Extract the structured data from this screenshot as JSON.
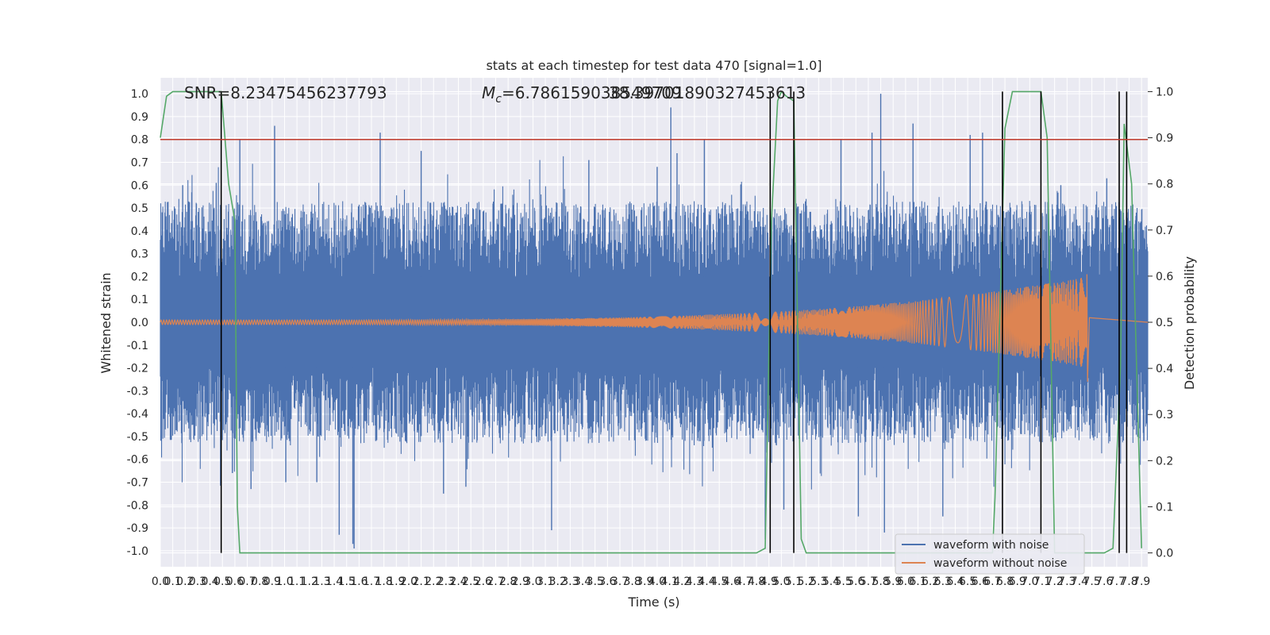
{
  "chart_data": {
    "type": "line",
    "title": "stats at each timestep for test data 470 [signal=1.0]",
    "xlabel": "Time (s)",
    "ylabel": "Whitened strain",
    "y2label": "Detection probability",
    "xlim": [
      0.0,
      7.95
    ],
    "ylim": [
      -1.07,
      1.07
    ],
    "y2lim": [
      -0.03,
      1.03
    ],
    "x_ticks": [
      "0.0",
      "0.1",
      "0.2",
      "0.3",
      "0.4",
      "0.5",
      "0.6",
      "0.7",
      "0.8",
      "0.9",
      "1.0",
      "1.1",
      "1.2",
      "1.3",
      "1.4",
      "1.5",
      "1.6",
      "1.7",
      "1.8",
      "1.9",
      "2.0",
      "2.1",
      "2.2",
      "2.3",
      "2.4",
      "2.5",
      "2.6",
      "2.7",
      "2.8",
      "2.9",
      "3.0",
      "3.1",
      "3.2",
      "3.3",
      "3.4",
      "3.5",
      "3.6",
      "3.7",
      "3.8",
      "3.9",
      "4.0",
      "4.1",
      "4.2",
      "4.3",
      "4.4",
      "4.5",
      "4.6",
      "4.7",
      "4.8",
      "4.9",
      "5.0",
      "5.1",
      "5.2",
      "5.3",
      "5.4",
      "5.5",
      "5.6",
      "5.7",
      "5.8",
      "5.9",
      "6.0",
      "6.1",
      "6.2",
      "6.3",
      "6.4",
      "6.5",
      "6.6",
      "6.7",
      "6.8",
      "6.9",
      "7.0",
      "7.1",
      "7.2",
      "7.3",
      "7.4",
      "7.5",
      "7.6",
      "7.7",
      "7.8",
      "7.9"
    ],
    "y_ticks": [
      "1.0",
      "0.9",
      "0.8",
      "0.7",
      "0.6",
      "0.5",
      "0.4",
      "0.3",
      "0.2",
      "0.1",
      "0.0",
      "-0.1",
      "-0.2",
      "-0.3",
      "-0.4",
      "-0.5",
      "-0.6",
      "-0.7",
      "-0.8",
      "-0.9",
      "-1.0"
    ],
    "y2_ticks": [
      "1.0",
      "0.9",
      "0.8",
      "0.7",
      "0.6",
      "0.5",
      "0.4",
      "0.3",
      "0.2",
      "0.1",
      "0.0"
    ],
    "annotations": {
      "snr": "SNR=8.23475456237793",
      "mc_label": "M",
      "mc_sub": "c",
      "mc_value": "=6.786159038549709",
      "overlap": "38.39701890327453613"
    },
    "threshold": {
      "y": 0.8,
      "color": "#c0392b"
    },
    "vertical_lines_x": [
      0.49,
      4.91,
      5.1,
      6.78,
      7.09,
      7.72,
      7.78
    ],
    "series": [
      {
        "name": "waveform with noise",
        "color": "#4c72b0",
        "axis": "left",
        "envelope_typical": 0.45,
        "spikes": [
          [
            0.18,
            0.6
          ],
          [
            0.45,
            0.61
          ],
          [
            0.58,
            -0.66
          ],
          [
            0.64,
            0.8
          ],
          [
            0.73,
            -0.73
          ],
          [
            0.92,
            0.86
          ],
          [
            1.01,
            -0.7
          ],
          [
            1.26,
            -0.7
          ],
          [
            1.44,
            -0.93
          ],
          [
            1.55,
            -0.97
          ],
          [
            1.56,
            -0.99
          ],
          [
            1.77,
            0.83
          ],
          [
            2.1,
            0.75
          ],
          [
            2.28,
            -0.75
          ],
          [
            2.46,
            -0.72
          ],
          [
            3.15,
            -0.91
          ],
          [
            3.45,
            0.71
          ],
          [
            4.0,
            0.68
          ],
          [
            4.11,
            0.94
          ],
          [
            4.16,
            0.74
          ],
          [
            4.38,
            0.8
          ],
          [
            4.87,
            -0.95
          ],
          [
            5.02,
            -0.82
          ],
          [
            5.48,
            0.8
          ],
          [
            5.62,
            -0.85
          ],
          [
            5.73,
            0.83
          ],
          [
            5.8,
            1.0
          ],
          [
            5.83,
            -0.92
          ],
          [
            6.06,
            0.87
          ],
          [
            6.3,
            -0.85
          ],
          [
            6.52,
            0.82
          ],
          [
            6.62,
            0.83
          ],
          [
            7.25,
            0.6
          ],
          [
            7.62,
            0.63
          ]
        ]
      },
      {
        "name": "waveform without noise",
        "color": "#dd8452",
        "axis": "left",
        "chirp": {
          "start_x": 0.0,
          "merger_x": 7.46,
          "amp_start": 0.01,
          "amp_merger": 0.2
        }
      },
      {
        "name": "detection probability",
        "color": "#55a868",
        "axis": "right",
        "points": [
          [
            0.0,
            0.9
          ],
          [
            0.05,
            0.99
          ],
          [
            0.1,
            1.0
          ],
          [
            0.49,
            1.0
          ],
          [
            0.55,
            0.8
          ],
          [
            0.6,
            0.72
          ],
          [
            0.62,
            0.1
          ],
          [
            0.64,
            0.0
          ],
          [
            1.0,
            0.0
          ],
          [
            2.0,
            0.0
          ],
          [
            3.0,
            0.0
          ],
          [
            4.0,
            0.0
          ],
          [
            4.8,
            0.0
          ],
          [
            4.87,
            0.01
          ],
          [
            4.92,
            0.72
          ],
          [
            4.97,
            0.98
          ],
          [
            5.0,
            1.0
          ],
          [
            5.04,
            0.99
          ],
          [
            5.1,
            0.98
          ],
          [
            5.13,
            0.5
          ],
          [
            5.16,
            0.03
          ],
          [
            5.2,
            0.0
          ],
          [
            5.5,
            0.0
          ],
          [
            6.0,
            0.0
          ],
          [
            6.7,
            0.0
          ],
          [
            6.72,
            0.12
          ],
          [
            6.8,
            0.92
          ],
          [
            6.86,
            1.0
          ],
          [
            7.09,
            1.0
          ],
          [
            7.14,
            0.9
          ],
          [
            7.2,
            0.0
          ],
          [
            7.6,
            0.0
          ],
          [
            7.67,
            0.01
          ],
          [
            7.73,
            0.4
          ],
          [
            7.76,
            0.93
          ],
          [
            7.82,
            0.8
          ],
          [
            7.9,
            0.01
          ]
        ]
      }
    ],
    "legend": {
      "position": "lower-right",
      "entries": [
        "waveform with noise",
        "waveform without noise"
      ]
    },
    "grid": true,
    "colors": {
      "plot_bg": "#eaeaf2",
      "grid": "#ffffff",
      "axis_text": "#262626"
    }
  }
}
